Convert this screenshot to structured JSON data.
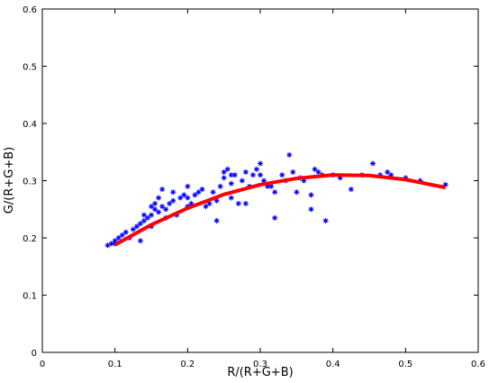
{
  "chart_data": {
    "type": "scatter",
    "xlabel": "R/(R+G+B)",
    "ylabel": "G/(R+G+B)",
    "xlim": [
      0,
      0.6
    ],
    "ylim": [
      0,
      0.6
    ],
    "xticks": [
      0,
      0.1,
      0.2,
      0.3,
      0.4,
      0.5,
      0.6
    ],
    "yticks": [
      0,
      0.1,
      0.2,
      0.3,
      0.4,
      0.5,
      0.6
    ],
    "grid": false,
    "series": [
      {
        "type": "scatter",
        "color": "#0000ff",
        "x": [
          0.09,
          0.095,
          0.1,
          0.105,
          0.11,
          0.1,
          0.115,
          0.12,
          0.125,
          0.13,
          0.135,
          0.135,
          0.14,
          0.145,
          0.15,
          0.15,
          0.155,
          0.155,
          0.16,
          0.16,
          0.165,
          0.165,
          0.17,
          0.17,
          0.175,
          0.18,
          0.185,
          0.19,
          0.195,
          0.2,
          0.2,
          0.205,
          0.21,
          0.215,
          0.22,
          0.225,
          0.23,
          0.235,
          0.24,
          0.24,
          0.245,
          0.25,
          0.25,
          0.255,
          0.26,
          0.26,
          0.265,
          0.27,
          0.275,
          0.28,
          0.28,
          0.285,
          0.29,
          0.295,
          0.3,
          0.305,
          0.31,
          0.315,
          0.32,
          0.32,
          0.33,
          0.335,
          0.34,
          0.345,
          0.35,
          0.355,
          0.36,
          0.37,
          0.37,
          0.375,
          0.38,
          0.385,
          0.39,
          0.4,
          0.41,
          0.425,
          0.44,
          0.455,
          0.465,
          0.475,
          0.48,
          0.5,
          0.52,
          0.555,
          0.3,
          0.26,
          0.15,
          0.14,
          0.18,
          0.2
        ],
        "values": [
          0.187,
          0.19,
          0.195,
          0.2,
          0.205,
          0.19,
          0.21,
          0.2,
          0.215,
          0.22,
          0.195,
          0.225,
          0.23,
          0.235,
          0.24,
          0.22,
          0.25,
          0.26,
          0.245,
          0.27,
          0.285,
          0.255,
          0.25,
          0.235,
          0.26,
          0.265,
          0.24,
          0.27,
          0.275,
          0.27,
          0.29,
          0.26,
          0.275,
          0.28,
          0.285,
          0.255,
          0.26,
          0.28,
          0.265,
          0.23,
          0.29,
          0.305,
          0.315,
          0.32,
          0.295,
          0.27,
          0.31,
          0.26,
          0.3,
          0.315,
          0.26,
          0.29,
          0.31,
          0.32,
          0.31,
          0.3,
          0.29,
          0.29,
          0.28,
          0.235,
          0.31,
          0.3,
          0.345,
          0.315,
          0.28,
          0.305,
          0.3,
          0.275,
          0.25,
          0.32,
          0.315,
          0.31,
          0.23,
          0.31,
          0.305,
          0.285,
          0.31,
          0.33,
          0.31,
          0.315,
          0.31,
          0.305,
          0.3,
          0.293,
          0.33,
          0.31,
          0.255,
          0.24,
          0.28,
          0.255
        ]
      },
      {
        "type": "line",
        "color": "#ff0000",
        "x": [
          0.1,
          0.15,
          0.2,
          0.25,
          0.3,
          0.35,
          0.4,
          0.45,
          0.5,
          0.555
        ],
        "values": [
          0.188,
          0.223,
          0.252,
          0.276,
          0.293,
          0.304,
          0.31,
          0.309,
          0.302,
          0.288
        ]
      }
    ]
  }
}
